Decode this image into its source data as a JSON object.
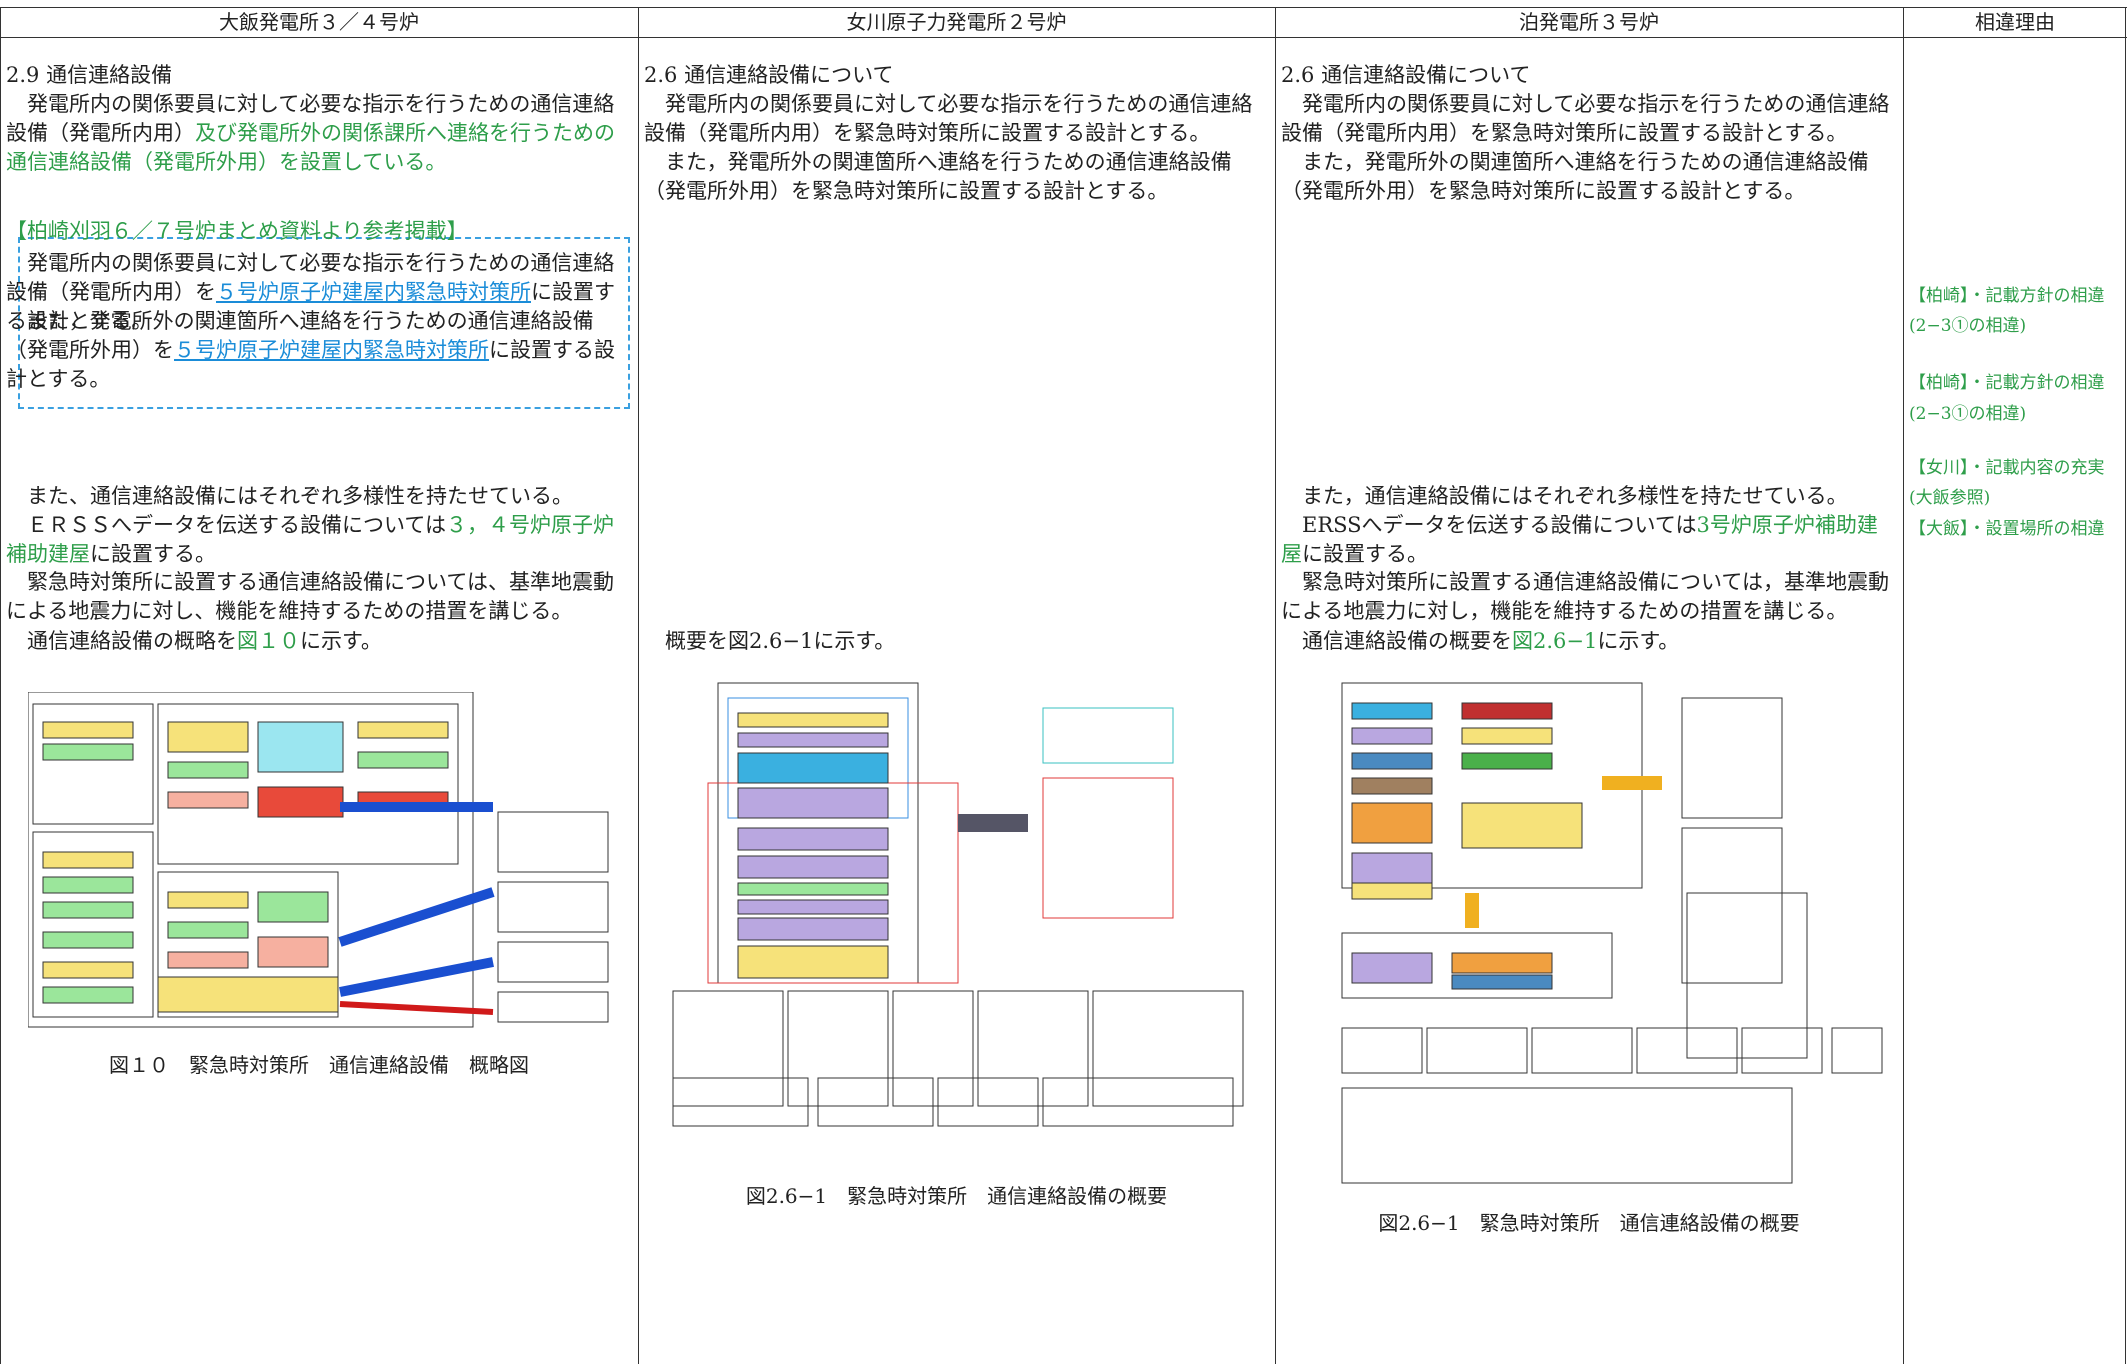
{
  "header": {
    "columns": [
      "大飯発電所３／４号炉",
      "女川原子力発電所２号炉",
      "泊発電所３号炉",
      "相違理由"
    ]
  },
  "columns": [
    {
      "blocks": [
        [
          {
            "text": "2.9 通信連絡設備"
          }
        ],
        [
          {
            "text": "　発電所内の関係要員に対して必要な指示を行うための通信連絡設備（発電所内用）"
          },
          {
            "text": "及び発電所外の関係課所へ連絡を行うための通信連絡設備（発電所外用）を設置している。",
            "style": "green"
          }
        ],
        [
          {
            "text": "【柏崎刈羽６／７号炉まとめ資料より参考掲載】",
            "style": "green"
          }
        ],
        [
          {
            "text": "　発電所内の関係要員に対して必要な指示を行うための通信連絡設備（発電所内用）を"
          },
          {
            "text": "５号炉原子炉建屋内緊急時対策所",
            "style": "link"
          },
          {
            "text": "に設置する設計とする。"
          }
        ],
        [
          {
            "text": "　また，発電所外の関連箇所へ連絡を行うための通信連絡設備（発電所外用）を"
          },
          {
            "text": "５号炉原子炉建屋内緊急時対策所",
            "style": "link"
          },
          {
            "text": "に設置する設計とする。"
          }
        ],
        [
          {
            "text": "　また、通信連絡設備にはそれぞれ多様性を持たせている。"
          }
        ],
        [
          {
            "text": "　ＥＲＳＳへデータを伝送する設備については"
          },
          {
            "text": "３，４号炉原子炉補助建屋",
            "style": "green"
          },
          {
            "text": "に設置する。"
          }
        ],
        [
          {
            "text": "　緊急時対策所に設置する通信連絡設備については、基準地震動による地震力に対し、機能を維持するための措置を講じる。"
          }
        ],
        [
          {
            "text": "　通信連絡設備の概略を"
          },
          {
            "text": "図１０",
            "style": "green"
          },
          {
            "text": "に示す。"
          }
        ]
      ],
      "caption": "図１０　緊急時対策所　通信連絡設備　概略図"
    },
    {
      "blocks": [
        [
          {
            "text": "2.6 通信連絡設備について"
          }
        ],
        [
          {
            "text": "　発電所内の関係要員に対して必要な指示を行うための通信連絡設備（発電所内用）を緊急時対策所に設置する設計とする。"
          }
        ],
        [
          {
            "text": "　また，発電所外の関連箇所へ連絡を行うための通信連絡設備（発電所外用）を緊急時対策所に設置する設計とする。"
          }
        ],
        [
          {
            "text": "　概要を図2.6−1に示す。"
          }
        ]
      ],
      "caption": "図2.6−1　緊急時対策所　通信連絡設備の概要"
    },
    {
      "blocks": [
        [
          {
            "text": "2.6 通信連絡設備について"
          }
        ],
        [
          {
            "text": "　発電所内の関係要員に対して必要な指示を行うための通信連絡設備（発電所内用）を緊急時対策所に設置する設計とする。"
          }
        ],
        [
          {
            "text": "　また，発電所外の関連箇所へ連絡を行うための通信連絡設備（発電所外用）を緊急時対策所に設置する設計とする。"
          }
        ],
        [
          {
            "text": "　また，通信連絡設備にはそれぞれ多様性を持たせている。"
          }
        ],
        [
          {
            "text": "　ERSSへデータを伝送する設備については"
          },
          {
            "text": "3号炉原子炉補助建屋",
            "style": "green"
          },
          {
            "text": "に設置する。"
          }
        ],
        [
          {
            "text": "　緊急時対策所に設置する通信連絡設備については，基準地震動による地震力に対し，機能を維持するための措置を講じる。"
          }
        ],
        [
          {
            "text": "　通信連絡設備の概要を"
          },
          {
            "text": "図2.6−1",
            "style": "green"
          },
          {
            "text": "に示す。"
          }
        ]
      ],
      "caption": "図2.6−1　緊急時対策所　通信連絡設備の概要"
    }
  ],
  "reasons": [
    "【柏崎】・記載方針の相違",
    "(2−3①の相違)",
    "【柏崎】・記載方針の相違",
    "(2−3①の相違)",
    "【女川】・記載内容の充実",
    "(大飯参照)",
    "【大飯】・設置場所の相違"
  ]
}
